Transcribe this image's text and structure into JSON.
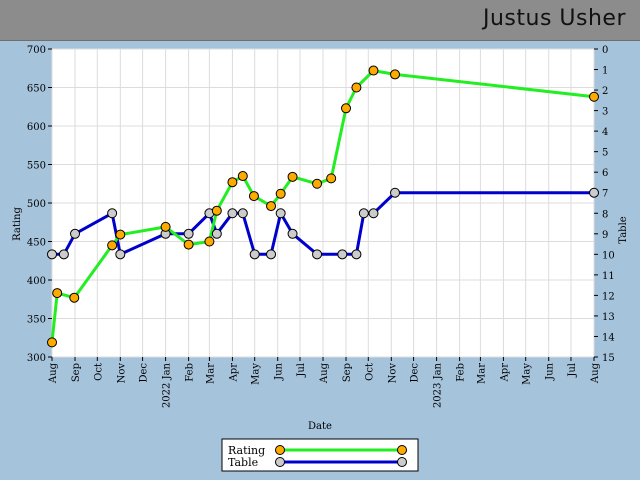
{
  "header": {
    "title": "Justus Usher"
  },
  "chart_data": {
    "type": "line",
    "xlabel": "Date",
    "ylabel": "Rating",
    "y2label": "Table",
    "ylim": [
      300,
      700
    ],
    "y2lim": [
      15,
      0
    ],
    "yticks": [
      300,
      350,
      400,
      450,
      500,
      550,
      600,
      650,
      700
    ],
    "y2ticks": [
      0,
      1,
      2,
      3,
      4,
      5,
      6,
      7,
      8,
      9,
      10,
      11,
      12,
      13,
      14,
      15
    ],
    "xlim": [
      "2021-08-01",
      "2023-08-01"
    ],
    "xticks": [
      {
        "date": "2021-08-01",
        "label": "Aug"
      },
      {
        "date": "2021-09-01",
        "label": "Sep"
      },
      {
        "date": "2021-10-01",
        "label": "Oct"
      },
      {
        "date": "2021-11-01",
        "label": "Nov"
      },
      {
        "date": "2021-12-01",
        "label": "Dec"
      },
      {
        "date": "2022-01-01",
        "label": "2022 Jan"
      },
      {
        "date": "2022-02-01",
        "label": "Feb"
      },
      {
        "date": "2022-03-01",
        "label": "Mar"
      },
      {
        "date": "2022-04-01",
        "label": "Apr"
      },
      {
        "date": "2022-05-01",
        "label": "May"
      },
      {
        "date": "2022-06-01",
        "label": "Jun"
      },
      {
        "date": "2022-07-01",
        "label": "Jul"
      },
      {
        "date": "2022-08-01",
        "label": "Aug"
      },
      {
        "date": "2022-09-01",
        "label": "Sep"
      },
      {
        "date": "2022-10-01",
        "label": "Oct"
      },
      {
        "date": "2022-11-01",
        "label": "Nov"
      },
      {
        "date": "2022-12-01",
        "label": "Dec"
      },
      {
        "date": "2023-01-01",
        "label": "2023 Jan"
      },
      {
        "date": "2023-02-01",
        "label": "Feb"
      },
      {
        "date": "2023-03-01",
        "label": "Mar"
      },
      {
        "date": "2023-04-01",
        "label": "Apr"
      },
      {
        "date": "2023-05-01",
        "label": "May"
      },
      {
        "date": "2023-06-01",
        "label": "Jun"
      },
      {
        "date": "2023-07-01",
        "label": "Jul"
      },
      {
        "date": "2023-08-01",
        "label": "Aug"
      }
    ],
    "grid": true,
    "legend": "bottom-center",
    "series": [
      {
        "name": "Rating",
        "axis": "left",
        "color": "#22ee22",
        "marker": "#ffaa00",
        "points": [
          {
            "x": "2021-08-01",
            "y": 319
          },
          {
            "x": "2021-08-08",
            "y": 383
          },
          {
            "x": "2021-08-31",
            "y": 377
          },
          {
            "x": "2021-10-21",
            "y": 445
          },
          {
            "x": "2021-11-01",
            "y": 459
          },
          {
            "x": "2022-01-01",
            "y": 469
          },
          {
            "x": "2022-02-01",
            "y": 446
          },
          {
            "x": "2022-03-01",
            "y": 450
          },
          {
            "x": "2022-03-11",
            "y": 490
          },
          {
            "x": "2022-04-01",
            "y": 527
          },
          {
            "x": "2022-04-15",
            "y": 535
          },
          {
            "x": "2022-04-30",
            "y": 509
          },
          {
            "x": "2022-05-23",
            "y": 496
          },
          {
            "x": "2022-06-05",
            "y": 512
          },
          {
            "x": "2022-06-21",
            "y": 534
          },
          {
            "x": "2022-07-24",
            "y": 525
          },
          {
            "x": "2022-08-12",
            "y": 532
          },
          {
            "x": "2022-09-01",
            "y": 623
          },
          {
            "x": "2022-09-15",
            "y": 650
          },
          {
            "x": "2022-10-08",
            "y": 672
          },
          {
            "x": "2022-11-06",
            "y": 667
          },
          {
            "x": "2023-08-01",
            "y": 638
          }
        ]
      },
      {
        "name": "Table",
        "axis": "right",
        "color": "#0000cc",
        "marker": "#cccccc",
        "points": [
          {
            "x": "2021-08-01",
            "y": 10
          },
          {
            "x": "2021-08-17",
            "y": 10
          },
          {
            "x": "2021-09-01",
            "y": 9
          },
          {
            "x": "2021-10-21",
            "y": 8
          },
          {
            "x": "2021-11-01",
            "y": 10
          },
          {
            "x": "2022-01-01",
            "y": 9
          },
          {
            "x": "2022-02-01",
            "y": 9
          },
          {
            "x": "2022-03-01",
            "y": 8
          },
          {
            "x": "2022-03-11",
            "y": 9
          },
          {
            "x": "2022-04-01",
            "y": 8
          },
          {
            "x": "2022-04-15",
            "y": 8
          },
          {
            "x": "2022-05-01",
            "y": 10
          },
          {
            "x": "2022-05-23",
            "y": 10
          },
          {
            "x": "2022-06-05",
            "y": 8
          },
          {
            "x": "2022-06-21",
            "y": 9
          },
          {
            "x": "2022-07-24",
            "y": 10
          },
          {
            "x": "2022-08-27",
            "y": 10
          },
          {
            "x": "2022-09-15",
            "y": 10
          },
          {
            "x": "2022-09-25",
            "y": 8
          },
          {
            "x": "2022-10-08",
            "y": 8
          },
          {
            "x": "2022-11-06",
            "y": 7
          },
          {
            "x": "2023-08-01",
            "y": 7
          }
        ]
      }
    ]
  }
}
